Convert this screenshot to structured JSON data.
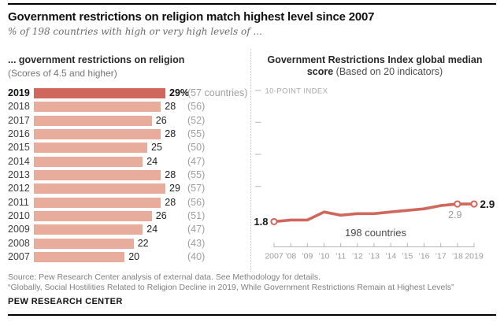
{
  "header": {
    "title": "Government restrictions on religion match highest level since 2007",
    "subtitle": "% of 198 countries with high or very high levels of ..."
  },
  "left_panel": {
    "heading": "... government restrictions on religion",
    "subheading": "(Scores of 4.5 and higher)"
  },
  "right_panel": {
    "heading_line1": "Government Restrictions Index global median",
    "heading_line2_bold": "score",
    "heading_line2_rest": " (Based on 20 indicators)",
    "axis_note": "10-POINT INDEX",
    "annotation": "198 countries",
    "label_2007": "1.8",
    "label_2018": "2.9",
    "label_2019": "2.9"
  },
  "footer": {
    "source_line": "Source: Pew Research Center analysis of external data. See Methodology for details.",
    "report_line": "“Globally, Social Hostilities Related to Religion Decline in 2019, While Government Restrictions Remain at Highest Levels”",
    "brand": "PEW RESEARCH CENTER"
  },
  "colors": {
    "accent_dark": "#cf675d",
    "accent_light": "#e7ac9c",
    "axis_gray": "#b5b5b5",
    "tick_text_gray": "#9b9b9b",
    "note_gray": "#a8a8a8",
    "annotation_gray": "#4a4a4a",
    "label_black": "#1a1a1a"
  },
  "chart_data": [
    {
      "type": "bar",
      "orientation": "horizontal",
      "title": "... government restrictions on religion (Scores of 4.5 and higher)",
      "categories": [
        "2019",
        "2018",
        "2017",
        "2016",
        "2015",
        "2014",
        "2013",
        "2012",
        "2011",
        "2010",
        "2009",
        "2008",
        "2007"
      ],
      "values": [
        29,
        28,
        26,
        28,
        25,
        24,
        28,
        29,
        28,
        26,
        24,
        22,
        20
      ],
      "value_labels": [
        "29%",
        "28",
        "26",
        "28",
        "25",
        "24",
        "28",
        "29",
        "28",
        "26",
        "24",
        "22",
        "20"
      ],
      "count_labels": [
        "(57 countries)",
        "(56)",
        "(52)",
        "(55)",
        "(50)",
        "(47)",
        "(55)",
        "(57)",
        "(56)",
        "(51)",
        "(47)",
        "(43)",
        "(40)"
      ],
      "xlim": [
        0,
        30
      ],
      "unit": "% of 198 countries"
    },
    {
      "type": "line",
      "title": "Government Restrictions Index global median score (Based on 20 indicators)",
      "x": [
        2007,
        2008,
        2009,
        2010,
        2011,
        2012,
        2013,
        2014,
        2015,
        2016,
        2017,
        2018,
        2019
      ],
      "x_labels": [
        "2007",
        "’08",
        "’09",
        "’10",
        "’11",
        "’12",
        "’13",
        "’14",
        "’15",
        "’16",
        "’17",
        "’18",
        "2019"
      ],
      "values": [
        1.8,
        1.9,
        1.9,
        2.4,
        2.2,
        2.3,
        2.3,
        2.4,
        2.5,
        2.6,
        2.8,
        2.9,
        2.9
      ],
      "labeled_points": [
        {
          "index": 0,
          "label": "1.8"
        },
        {
          "index": 11,
          "label": "2.9"
        },
        {
          "index": 12,
          "label": "2.9"
        }
      ],
      "ylim": [
        0,
        10
      ],
      "y_axis_note": "10-POINT INDEX",
      "annotation": "198 countries",
      "legend_position": "none",
      "grid": false
    }
  ]
}
